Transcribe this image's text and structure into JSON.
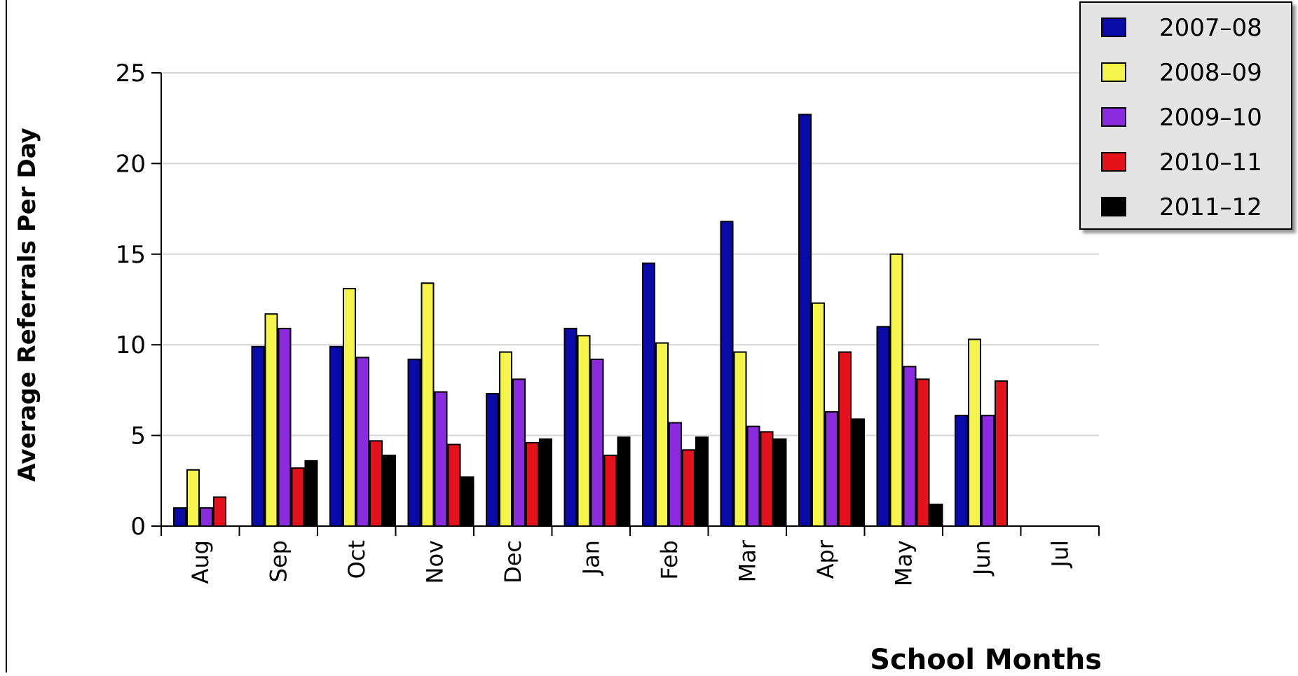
{
  "chart_data": {
    "type": "bar",
    "title": "",
    "xlabel": "School Months",
    "ylabel": "Average Referrals Per Day",
    "ylim": [
      0,
      25
    ],
    "yticks": [
      0,
      5,
      10,
      15,
      20,
      25
    ],
    "grid": true,
    "legend_position": "top-right",
    "categories": [
      "Aug",
      "Sep",
      "Oct",
      "Nov",
      "Dec",
      "Jan",
      "Feb",
      "Mar",
      "Apr",
      "May",
      "Jun",
      "Jul"
    ],
    "series": [
      {
        "name": "2007–08",
        "color": "#0a0aa8",
        "values": [
          1.0,
          9.9,
          9.9,
          9.2,
          7.3,
          10.9,
          14.5,
          16.8,
          22.7,
          11.0,
          6.1,
          null
        ]
      },
      {
        "name": "2008–09",
        "color": "#f4f44a",
        "values": [
          3.1,
          11.7,
          13.1,
          13.4,
          9.6,
          10.5,
          10.1,
          9.6,
          12.3,
          15.0,
          10.3,
          null
        ]
      },
      {
        "name": "2009–10",
        "color": "#8b2be0",
        "values": [
          1.0,
          10.9,
          9.3,
          7.4,
          8.1,
          9.2,
          5.7,
          5.5,
          6.3,
          8.8,
          6.1,
          null
        ]
      },
      {
        "name": "2010–11",
        "color": "#e4131b",
        "values": [
          1.6,
          3.2,
          4.7,
          4.5,
          4.6,
          3.9,
          4.2,
          5.2,
          9.6,
          8.1,
          8.0,
          null
        ]
      },
      {
        "name": "2011–12",
        "color": "#000000",
        "values": [
          null,
          3.6,
          3.9,
          2.7,
          4.8,
          4.9,
          4.9,
          4.8,
          5.9,
          1.2,
          null,
          null
        ]
      }
    ]
  }
}
